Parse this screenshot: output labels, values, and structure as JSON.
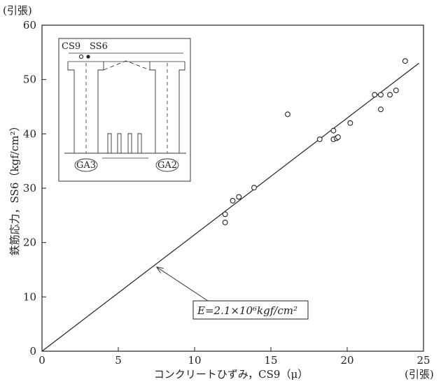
{
  "chart_data": {
    "type": "scatter",
    "title": "",
    "xlabel": "コンクリートひずみ，CS9（μ）",
    "ylabel": "鉄筋応力，SS6（kgf/cm²）",
    "x_corner_label": "(引張)",
    "y_corner_label": "(引張)",
    "xlim": [
      0,
      25
    ],
    "ylim": [
      0,
      60
    ],
    "x_ticks": [
      "0",
      "5",
      "10",
      "15",
      "20",
      "25"
    ],
    "y_ticks": [
      "0",
      "10",
      "20",
      "30",
      "40",
      "50",
      "60"
    ],
    "grid": false,
    "series": [
      {
        "marker": "open-circle",
        "points": [
          [
            12.0,
            25.2
          ],
          [
            12.0,
            23.7
          ],
          [
            12.5,
            27.7
          ],
          [
            12.9,
            28.4
          ],
          [
            13.9,
            30.1
          ],
          [
            16.1,
            43.6
          ],
          [
            18.2,
            39.0
          ],
          [
            19.1,
            40.6
          ],
          [
            19.1,
            39.0
          ],
          [
            19.3,
            39.2
          ],
          [
            19.4,
            39.4
          ],
          [
            20.2,
            42.0
          ],
          [
            21.8,
            47.2
          ],
          [
            22.2,
            47.2
          ],
          [
            22.2,
            44.5
          ],
          [
            22.8,
            47.2
          ],
          [
            23.2,
            48.0
          ],
          [
            23.8,
            53.4
          ]
        ]
      }
    ],
    "fit_line": {
      "x": [
        0,
        24.7
      ],
      "y": [
        0,
        53.0
      ]
    },
    "annotation": {
      "text": "E=2.1×10⁶kgf/cm²",
      "points_to": [
        7.4,
        15.7
      ]
    },
    "inset": {
      "labels": [
        "CS9",
        "SS6",
        "GA3",
        "GA2"
      ],
      "markers": [
        "open-circle",
        "filled-circle"
      ]
    }
  }
}
